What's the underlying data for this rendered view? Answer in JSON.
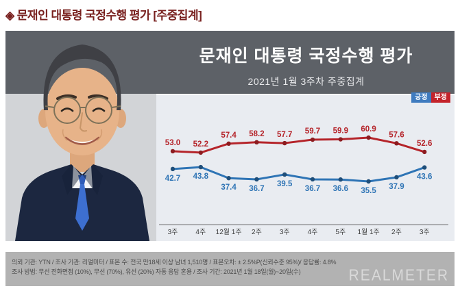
{
  "page_title": "◈ 문재인 대통령 국정수행 평가 [주중집계]",
  "panel": {
    "title": "문재인 대통령 국정수행 평가",
    "subtitle": "2021년 1월 3주차 주중집계",
    "legend": [
      {
        "label": "긍정",
        "color": "#3f7bbf"
      },
      {
        "label": "부정",
        "color": "#c4232b"
      }
    ]
  },
  "chart_data": {
    "type": "line",
    "title": "문재인 대통령 국정수행 평가",
    "subtitle": "2021년 1월 3주차 주중집계",
    "unit": "%",
    "categories": [
      "3주",
      "4주",
      "12월 1주",
      "2주",
      "3주",
      "4주",
      "5주",
      "1월 1주",
      "2주",
      "3주"
    ],
    "series": [
      {
        "name": "부정",
        "color": "#b5242a",
        "dot_color": "#8c1c20",
        "label_position": "above",
        "values": [
          53.0,
          52.2,
          57.4,
          58.2,
          57.7,
          59.7,
          59.9,
          60.9,
          57.6,
          52.6
        ]
      },
      {
        "name": "긍정",
        "color": "#2e74b5",
        "dot_color": "#1f4e79",
        "label_position": "below",
        "values": [
          42.7,
          43.8,
          37.4,
          36.7,
          39.5,
          36.7,
          36.6,
          35.5,
          37.9,
          43.6
        ]
      }
    ],
    "xlabel": "",
    "ylabel": "",
    "ylim": [
      30,
      65
    ],
    "grid": false,
    "legend_position": "top-right"
  },
  "footer": {
    "line1": "의뢰 기관: YTN / 조사 기관: 리얼미터 / 표본 수: 전국 만18세 이상 남녀 1,510명 / 표본오차: ± 2.5%P(신뢰수준 95%)/ 응답률: 4.8%",
    "line2": "조사 방법: 무선 전화면접 (10%), 무선 (70%), 유선 (20%) 자동 응답 혼용 / 조사 기간: 2021년 1월 18일(월)~20일(수)",
    "logo": "REALMETER"
  },
  "colors": {
    "title_red": "#79211f",
    "header_bg": "#5d6167",
    "chart_bg": "#e9ecf1",
    "footer_bg": "#b2b2b2",
    "positive_blue": "#2e74b5",
    "negative_red": "#b5242a"
  }
}
